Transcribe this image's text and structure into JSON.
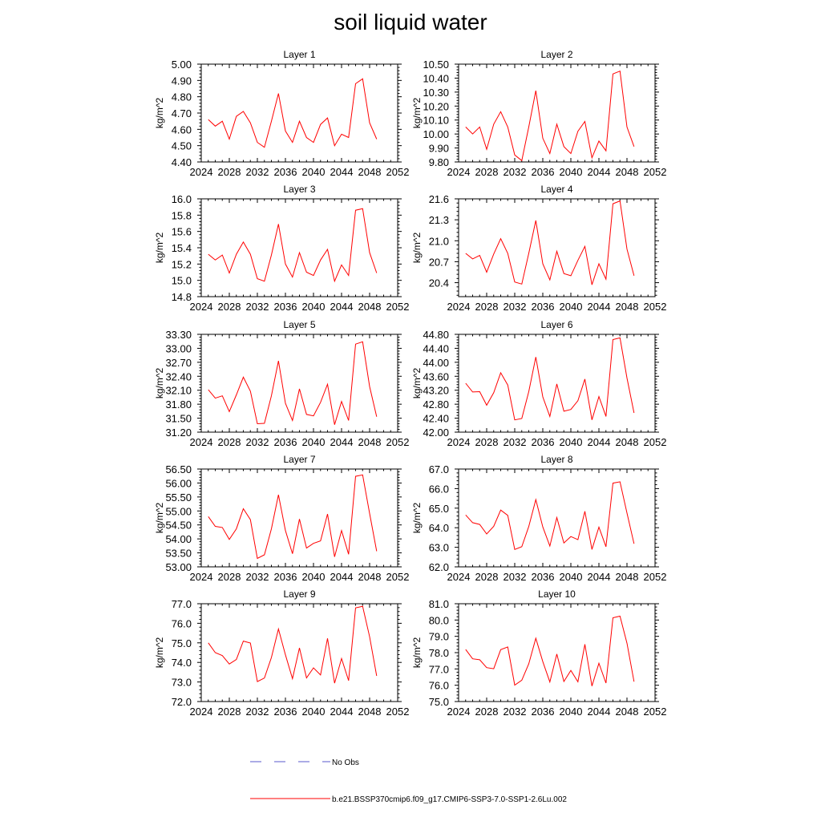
{
  "title": "soil liquid water",
  "legend": {
    "obs_label": "No Obs",
    "obs_color": "#5a5acc",
    "model_label": "b.e21.BSSP370cmip6.f09_g17.CMIP6-SSP3-7.0-SSP1-2.6Lu.002",
    "model_color": "#ff0000"
  },
  "chart_data": [
    {
      "type": "line",
      "title": "Layer 1",
      "ylabel": "kg/m^2",
      "xlim": [
        2024,
        2052
      ],
      "xticks": [
        "2024",
        "2028",
        "2032",
        "2036",
        "2040",
        "2044",
        "2048",
        "2052"
      ],
      "ylim": [
        4.4,
        5.0
      ],
      "yticks": [
        "4.40",
        "4.50",
        "4.60",
        "4.70",
        "4.80",
        "4.90",
        "5.00"
      ],
      "x": [
        2025,
        2026,
        2027,
        2028,
        2029,
        2030,
        2031,
        2032,
        2033,
        2034,
        2035,
        2036,
        2037,
        2038,
        2039,
        2040,
        2041,
        2042,
        2043,
        2044,
        2045,
        2046,
        2047,
        2048,
        2049
      ],
      "series": [
        {
          "values": [
            4.66,
            4.62,
            4.65,
            4.54,
            4.68,
            4.71,
            4.64,
            4.52,
            4.49,
            4.65,
            4.82,
            4.59,
            4.52,
            4.65,
            4.55,
            4.52,
            4.63,
            4.67,
            4.5,
            4.57,
            4.55,
            4.88,
            4.91,
            4.64,
            4.54
          ]
        }
      ]
    },
    {
      "type": "line",
      "title": "Layer 2",
      "ylabel": "kg/m^2",
      "xlim": [
        2024,
        2052
      ],
      "xticks": [
        "2024",
        "2028",
        "2032",
        "2036",
        "2040",
        "2044",
        "2048",
        "2052"
      ],
      "ylim": [
        9.8,
        10.5
      ],
      "yticks": [
        "9.80",
        "9.90",
        "10.00",
        "10.10",
        "10.20",
        "10.30",
        "10.40",
        "10.50"
      ],
      "x": [
        2025,
        2026,
        2027,
        2028,
        2029,
        2030,
        2031,
        2032,
        2033,
        2034,
        2035,
        2036,
        2037,
        2038,
        2039,
        2040,
        2041,
        2042,
        2043,
        2044,
        2045,
        2046,
        2047,
        2048,
        2049
      ],
      "series": [
        {
          "values": [
            10.05,
            10.0,
            10.05,
            9.89,
            10.07,
            10.16,
            10.05,
            9.85,
            9.81,
            10.05,
            10.31,
            9.97,
            9.86,
            10.07,
            9.91,
            9.86,
            10.02,
            10.09,
            9.83,
            9.95,
            9.88,
            10.43,
            10.45,
            10.05,
            9.91
          ]
        }
      ]
    },
    {
      "type": "line",
      "title": "Layer 3",
      "ylabel": "kg/m^2",
      "xlim": [
        2024,
        2052
      ],
      "xticks": [
        "2024",
        "2028",
        "2032",
        "2036",
        "2040",
        "2044",
        "2048",
        "2052"
      ],
      "ylim": [
        14.8,
        16.0
      ],
      "yticks": [
        "14.8",
        "15.0",
        "15.2",
        "15.4",
        "15.6",
        "15.8",
        "16.0"
      ],
      "x": [
        2025,
        2026,
        2027,
        2028,
        2029,
        2030,
        2031,
        2032,
        2033,
        2034,
        2035,
        2036,
        2037,
        2038,
        2039,
        2040,
        2041,
        2042,
        2043,
        2044,
        2045,
        2046,
        2047,
        2048,
        2049
      ],
      "series": [
        {
          "values": [
            15.32,
            15.25,
            15.31,
            15.09,
            15.32,
            15.47,
            15.32,
            15.02,
            14.99,
            15.31,
            15.69,
            15.2,
            15.04,
            15.34,
            15.1,
            15.06,
            15.25,
            15.38,
            14.99,
            15.19,
            15.06,
            15.86,
            15.88,
            15.34,
            15.09
          ]
        }
      ]
    },
    {
      "type": "line",
      "title": "Layer 4",
      "ylabel": "kg/m^2",
      "xlim": [
        2024,
        2052
      ],
      "xticks": [
        "2024",
        "2028",
        "2032",
        "2036",
        "2040",
        "2044",
        "2048",
        "2052"
      ],
      "ylim": [
        20.2,
        21.6
      ],
      "yticks": [
        "20.4",
        "20.7",
        "21.0",
        "21.3",
        "21.6"
      ],
      "x": [
        2025,
        2026,
        2027,
        2028,
        2029,
        2030,
        2031,
        2032,
        2033,
        2034,
        2035,
        2036,
        2037,
        2038,
        2039,
        2040,
        2041,
        2042,
        2043,
        2044,
        2045,
        2046,
        2047,
        2048,
        2049
      ],
      "series": [
        {
          "values": [
            20.82,
            20.74,
            20.79,
            20.55,
            20.81,
            21.03,
            20.82,
            20.41,
            20.38,
            20.82,
            21.29,
            20.67,
            20.44,
            20.85,
            20.53,
            20.5,
            20.72,
            20.92,
            20.37,
            20.67,
            20.45,
            21.53,
            21.57,
            20.88,
            20.5
          ]
        }
      ]
    },
    {
      "type": "line",
      "title": "Layer 5",
      "ylabel": "kg/m^2",
      "xlim": [
        2024,
        2052
      ],
      "xticks": [
        "2024",
        "2028",
        "2032",
        "2036",
        "2040",
        "2044",
        "2048",
        "2052"
      ],
      "ylim": [
        31.2,
        33.3
      ],
      "yticks": [
        "31.20",
        "31.50",
        "31.80",
        "32.10",
        "32.40",
        "32.70",
        "33.00",
        "33.30"
      ],
      "x": [
        2025,
        2026,
        2027,
        2028,
        2029,
        2030,
        2031,
        2032,
        2033,
        2034,
        2035,
        2036,
        2037,
        2038,
        2039,
        2040,
        2041,
        2042,
        2043,
        2044,
        2045,
        2046,
        2047,
        2048,
        2049
      ],
      "series": [
        {
          "values": [
            32.11,
            31.93,
            31.98,
            31.64,
            32.0,
            32.38,
            32.08,
            31.38,
            31.39,
            31.98,
            32.73,
            31.82,
            31.45,
            32.13,
            31.58,
            31.55,
            31.84,
            32.23,
            31.36,
            31.86,
            31.45,
            33.09,
            33.14,
            32.18,
            31.53
          ]
        }
      ]
    },
    {
      "type": "line",
      "title": "Layer 6",
      "ylabel": "kg/m^2",
      "xlim": [
        2024,
        2052
      ],
      "xticks": [
        "2024",
        "2028",
        "2032",
        "2036",
        "2040",
        "2044",
        "2048",
        "2052"
      ],
      "ylim": [
        42.0,
        44.8
      ],
      "yticks": [
        "42.00",
        "42.40",
        "42.80",
        "43.20",
        "43.60",
        "44.00",
        "44.40",
        "44.80"
      ],
      "x": [
        2025,
        2026,
        2027,
        2028,
        2029,
        2030,
        2031,
        2032,
        2033,
        2034,
        2035,
        2036,
        2037,
        2038,
        2039,
        2040,
        2041,
        2042,
        2043,
        2044,
        2045,
        2046,
        2047,
        2048,
        2049
      ],
      "series": [
        {
          "values": [
            43.4,
            43.15,
            43.16,
            42.77,
            43.13,
            43.7,
            43.35,
            42.35,
            42.39,
            43.16,
            44.15,
            43.01,
            42.45,
            43.38,
            42.6,
            42.65,
            42.9,
            43.52,
            42.35,
            43.02,
            42.45,
            44.65,
            44.7,
            43.55,
            42.55
          ]
        }
      ]
    },
    {
      "type": "line",
      "title": "Layer 7",
      "ylabel": "kg/m^2",
      "xlim": [
        2024,
        2052
      ],
      "xticks": [
        "2024",
        "2028",
        "2032",
        "2036",
        "2040",
        "2044",
        "2048",
        "2052"
      ],
      "ylim": [
        53.0,
        56.5
      ],
      "yticks": [
        "53.00",
        "53.50",
        "54.00",
        "54.50",
        "55.00",
        "55.50",
        "56.00",
        "56.50"
      ],
      "x": [
        2025,
        2026,
        2027,
        2028,
        2029,
        2030,
        2031,
        2032,
        2033,
        2034,
        2035,
        2036,
        2037,
        2038,
        2039,
        2040,
        2041,
        2042,
        2043,
        2044,
        2045,
        2046,
        2047,
        2048,
        2049
      ],
      "series": [
        {
          "values": [
            54.8,
            54.45,
            54.41,
            53.98,
            54.36,
            55.08,
            54.69,
            53.3,
            53.43,
            54.36,
            55.58,
            54.3,
            53.47,
            54.71,
            53.67,
            53.84,
            53.93,
            54.89,
            53.36,
            54.3,
            53.45,
            56.24,
            56.29,
            54.91,
            53.56
          ]
        }
      ]
    },
    {
      "type": "line",
      "title": "Layer 8",
      "ylabel": "kg/m^2",
      "xlim": [
        2024,
        2052
      ],
      "xticks": [
        "2024",
        "2028",
        "2032",
        "2036",
        "2040",
        "2044",
        "2048",
        "2052"
      ],
      "ylim": [
        62.0,
        67.0
      ],
      "yticks": [
        "62.0",
        "63.0",
        "64.0",
        "65.0",
        "66.0",
        "67.0"
      ],
      "x": [
        2025,
        2026,
        2027,
        2028,
        2029,
        2030,
        2031,
        2032,
        2033,
        2034,
        2035,
        2036,
        2037,
        2038,
        2039,
        2040,
        2041,
        2042,
        2043,
        2044,
        2045,
        2046,
        2047,
        2048,
        2049
      ],
      "series": [
        {
          "values": [
            64.65,
            64.26,
            64.17,
            63.68,
            64.07,
            64.9,
            64.63,
            62.89,
            63.03,
            64.06,
            65.44,
            64.04,
            63.06,
            64.52,
            63.22,
            63.55,
            63.39,
            64.84,
            62.89,
            64.03,
            63.03,
            66.28,
            66.35,
            64.75,
            63.18
          ]
        }
      ]
    },
    {
      "type": "line",
      "title": "Layer 9",
      "ylabel": "kg/m^2",
      "xlim": [
        2024,
        2052
      ],
      "xticks": [
        "2024",
        "2028",
        "2032",
        "2036",
        "2040",
        "2044",
        "2048",
        "2052"
      ],
      "ylim": [
        72.0,
        77.0
      ],
      "yticks": [
        "72.0",
        "73.0",
        "74.0",
        "75.0",
        "76.0",
        "77.0"
      ],
      "x": [
        2025,
        2026,
        2027,
        2028,
        2029,
        2030,
        2031,
        2032,
        2033,
        2034,
        2035,
        2036,
        2037,
        2038,
        2039,
        2040,
        2041,
        2042,
        2043,
        2044,
        2045,
        2046,
        2047,
        2048,
        2049
      ],
      "series": [
        {
          "values": [
            75.0,
            74.5,
            74.35,
            73.92,
            74.15,
            75.09,
            74.99,
            73.02,
            73.2,
            74.25,
            75.71,
            74.39,
            73.17,
            74.74,
            73.21,
            73.72,
            73.36,
            75.23,
            72.94,
            74.2,
            73.07,
            76.79,
            76.87,
            75.31,
            73.31
          ]
        }
      ]
    },
    {
      "type": "line",
      "title": "Layer 10",
      "ylabel": "kg/m^2",
      "xlim": [
        2024,
        2052
      ],
      "xticks": [
        "2024",
        "2028",
        "2032",
        "2036",
        "2040",
        "2044",
        "2048",
        "2052"
      ],
      "ylim": [
        75.0,
        81.0
      ],
      "yticks": [
        "75.0",
        "76.0",
        "77.0",
        "78.0",
        "79.0",
        "80.0",
        "81.0"
      ],
      "x": [
        2025,
        2026,
        2027,
        2028,
        2029,
        2030,
        2031,
        2032,
        2033,
        2034,
        2035,
        2036,
        2037,
        2038,
        2039,
        2040,
        2041,
        2042,
        2043,
        2044,
        2045,
        2046,
        2047,
        2048,
        2049
      ],
      "series": [
        {
          "values": [
            78.19,
            77.62,
            77.56,
            77.08,
            77.01,
            78.18,
            78.35,
            76.01,
            76.31,
            77.31,
            78.88,
            77.45,
            76.2,
            77.91,
            76.23,
            76.91,
            76.21,
            78.51,
            75.95,
            77.35,
            76.13,
            80.14,
            80.24,
            78.58,
            76.22
          ]
        }
      ]
    }
  ]
}
